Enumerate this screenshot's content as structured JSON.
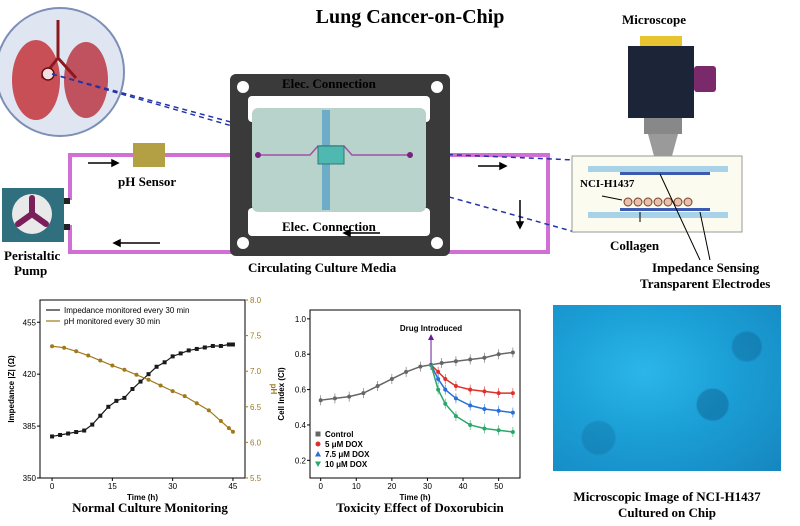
{
  "title": "Lung Cancer-on-Chip",
  "labels": {
    "microscope": "Microscope",
    "elec_top": "Elec. Connection",
    "elec_bottom": "Elec. Connection",
    "ph_sensor": "pH Sensor",
    "pump_line1": "Peristaltic",
    "pump_line2": "Pump",
    "circulating": "Circulating Culture Media",
    "cell_line": "NCI-H1437",
    "collagen": "Collagen",
    "electrodes_line1": "Impedance Sensing",
    "electrodes_line2": "Transparent Electrodes"
  },
  "captions": {
    "chart1": "Normal Culture Monitoring",
    "chart2": "Toxicity Effect of Doxorubicin",
    "micro_line1": "Microscopic Image of NCI-H1437",
    "micro_line2": "Cultured on Chip"
  },
  "colors": {
    "tubing": "#d26fd6",
    "chip_frame": "#3a3a3a",
    "chip_body": "#b8d3cc",
    "impedance": "#1a1a1a",
    "ph": "#a07a1a",
    "control": "#666666",
    "dox5": "#e0302a",
    "dox7_5": "#2a6fd8",
    "dox10": "#2aa86a"
  },
  "chart_data": [
    {
      "type": "line",
      "title": "",
      "xlabel": "Time (h)",
      "ylabel": "Impedance |Z| (Ω)",
      "ylabel_right": "pH",
      "xlim": [
        -3,
        48
      ],
      "ylim": [
        350,
        470
      ],
      "ylim_right": [
        5.5,
        8.0
      ],
      "xticks": [
        "0",
        "15",
        "30",
        "45"
      ],
      "yticks": [
        "350",
        "385",
        "420",
        "455"
      ],
      "yticks_right": [
        "5.5",
        "6.0",
        "6.5",
        "7.0",
        "7.5",
        "8.0"
      ],
      "legend": "top-left",
      "series": [
        {
          "name": "Impedance monitored every 30 min",
          "x": [
            0,
            2,
            4,
            6,
            8,
            10,
            12,
            14,
            16,
            18,
            20,
            22,
            24,
            26,
            28,
            30,
            32,
            34,
            36,
            38,
            40,
            42,
            44,
            45
          ],
          "values": [
            378,
            379,
            380,
            381,
            382,
            386,
            392,
            398,
            402,
            404,
            410,
            415,
            420,
            425,
            428,
            432,
            434,
            436,
            437,
            438,
            439,
            439,
            440,
            440
          ]
        },
        {
          "name": "pH monitored every 30 min",
          "axis": "right",
          "x": [
            0,
            3,
            6,
            9,
            12,
            15,
            18,
            21,
            24,
            27,
            30,
            33,
            36,
            39,
            42,
            44,
            45
          ],
          "values": [
            7.35,
            7.33,
            7.28,
            7.22,
            7.15,
            7.08,
            7.02,
            6.95,
            6.88,
            6.8,
            6.72,
            6.65,
            6.55,
            6.45,
            6.3,
            6.2,
            6.15
          ]
        }
      ]
    },
    {
      "type": "line",
      "title": "",
      "xlabel": "Time (h)",
      "ylabel": "Cell Index (CI)",
      "xlim": [
        -3,
        56
      ],
      "ylim": [
        0.1,
        1.05
      ],
      "xticks": [
        "0",
        "10",
        "20",
        "30",
        "40",
        "50"
      ],
      "yticks": [
        "0.2",
        "0.4",
        "0.6",
        "0.8",
        "1.0"
      ],
      "legend": "bottom-left",
      "annotation": "Drug Introduced",
      "annotation_x": 31,
      "series": [
        {
          "name": "Control",
          "x": [
            0,
            4,
            8,
            12,
            16,
            20,
            24,
            28,
            31,
            34,
            38,
            42,
            46,
            50,
            54
          ],
          "values": [
            0.54,
            0.55,
            0.56,
            0.58,
            0.62,
            0.66,
            0.7,
            0.73,
            0.74,
            0.75,
            0.76,
            0.77,
            0.78,
            0.8,
            0.81
          ]
        },
        {
          "name": "5 μM DOX",
          "x": [
            31,
            33,
            35,
            38,
            42,
            46,
            50,
            54
          ],
          "values": [
            0.74,
            0.7,
            0.66,
            0.62,
            0.6,
            0.59,
            0.58,
            0.58
          ]
        },
        {
          "name": "7.5 μM DOX",
          "x": [
            31,
            33,
            35,
            38,
            42,
            46,
            50,
            54
          ],
          "values": [
            0.74,
            0.66,
            0.6,
            0.55,
            0.51,
            0.49,
            0.48,
            0.47
          ]
        },
        {
          "name": "10 μM DOX",
          "x": [
            31,
            33,
            35,
            38,
            42,
            46,
            50,
            54
          ],
          "values": [
            0.74,
            0.6,
            0.52,
            0.45,
            0.4,
            0.38,
            0.37,
            0.36
          ]
        }
      ]
    }
  ]
}
